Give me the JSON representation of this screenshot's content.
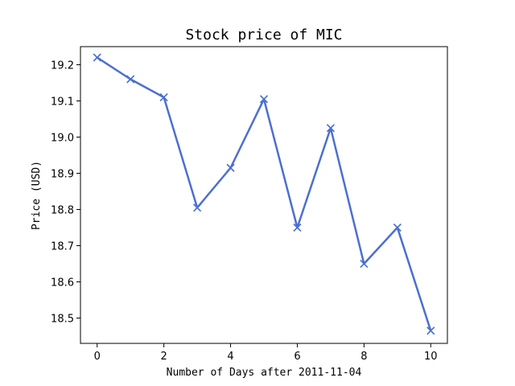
{
  "chart_data": {
    "type": "line",
    "title": "Stock price of MIC",
    "xlabel": "Number of Days after 2011-11-04",
    "ylabel": "Price (USD)",
    "xlim": [
      -0.5,
      10.5
    ],
    "ylim": [
      18.43,
      19.25
    ],
    "xticks": [
      0,
      2,
      4,
      6,
      8,
      10
    ],
    "yticks": [
      18.5,
      18.6,
      18.7,
      18.8,
      18.9,
      19.0,
      19.1,
      19.2
    ],
    "ytick_labels": [
      "18.5",
      "18.6",
      "18.7",
      "18.8",
      "18.9",
      "19.0",
      "19.1",
      "19.2"
    ],
    "grid": false,
    "marker": "x",
    "color": "#4c6fcf",
    "series": [
      {
        "x": [
          0,
          1,
          2,
          3,
          4,
          5,
          6,
          7,
          8,
          9,
          10
        ],
        "values": [
          19.22,
          19.16,
          19.11,
          18.805,
          18.915,
          19.105,
          18.75,
          19.025,
          18.65,
          18.75,
          18.465
        ]
      }
    ]
  }
}
